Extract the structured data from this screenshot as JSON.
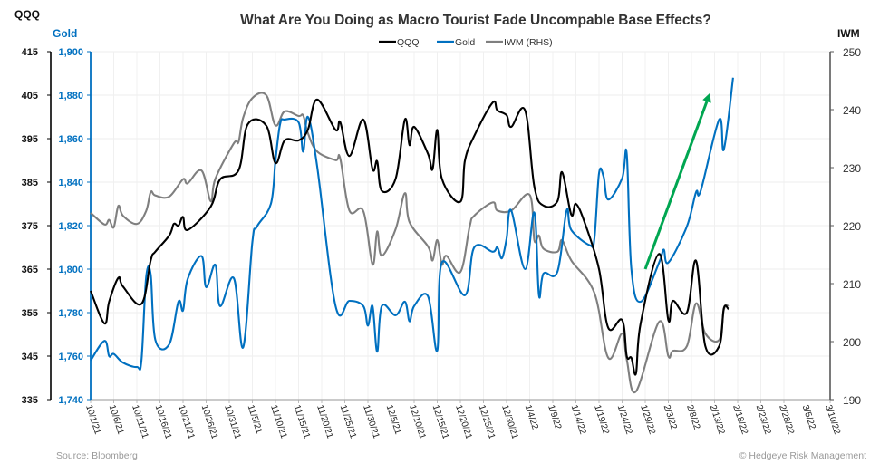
{
  "chart_data": {
    "type": "line",
    "title": "What Are You Doing as Macro Tourist Fade Uncompable Base Effects?",
    "source": "Source: Bloomberg",
    "copyright": "© Hedgeye Risk Management",
    "axes": {
      "left_outer": {
        "label": "QQQ",
        "range": [
          335,
          415
        ],
        "ticks": [
          "335",
          "345",
          "355",
          "365",
          "375",
          "385",
          "395",
          "405",
          "415"
        ],
        "color": "#000000"
      },
      "left_inner": {
        "label": "Gold",
        "range": [
          1740,
          1900
        ],
        "ticks": [
          "1,740",
          "1,760",
          "1,780",
          "1,800",
          "1,820",
          "1,840",
          "1,860",
          "1,880",
          "1,900"
        ],
        "color": "#0070c0"
      },
      "right": {
        "label": "IWM",
        "range": [
          190,
          250
        ],
        "ticks": [
          "190",
          "200",
          "210",
          "220",
          "230",
          "240",
          "250"
        ],
        "color": "#595959"
      },
      "x": {
        "range": [
          "2021-10-01",
          "2022-03-10"
        ],
        "ticks": [
          "10/1/21",
          "10/6/21",
          "10/11/21",
          "10/16/21",
          "10/21/21",
          "10/26/21",
          "10/31/21",
          "11/5/21",
          "11/10/21",
          "11/15/21",
          "11/20/21",
          "11/25/21",
          "11/30/21",
          "12/5/21",
          "12/10/21",
          "12/15/21",
          "12/20/21",
          "12/25/21",
          "12/30/21",
          "1/4/22",
          "1/9/22",
          "1/14/22",
          "1/19/22",
          "1/24/22",
          "1/29/22",
          "2/3/22",
          "2/8/22",
          "2/13/22",
          "2/18/22",
          "2/23/22",
          "2/28/22",
          "3/5/22",
          "3/10/22"
        ]
      }
    },
    "grid": true,
    "legend_position": "top-center",
    "series": [
      {
        "name": "QQQ",
        "axis": "left_outer",
        "color": "#000000",
        "points": [
          [
            "2021-10-01",
            360
          ],
          [
            "2021-10-04",
            352.5
          ],
          [
            "2021-10-05",
            357.5
          ],
          [
            "2021-10-07",
            363
          ],
          [
            "2021-10-08",
            361
          ],
          [
            "2021-10-12",
            357
          ],
          [
            "2021-10-14",
            367
          ],
          [
            "2021-10-15",
            369
          ],
          [
            "2021-10-18",
            372.7
          ],
          [
            "2021-10-19",
            375.4
          ],
          [
            "2021-10-20",
            375
          ],
          [
            "2021-10-21",
            377
          ],
          [
            "2021-10-22",
            374
          ],
          [
            "2021-10-27",
            379.4
          ],
          [
            "2021-10-29",
            385.6
          ],
          [
            "2021-11-02",
            387.7
          ],
          [
            "2021-11-04",
            398.3
          ],
          [
            "2021-11-08",
            398
          ],
          [
            "2021-11-10",
            389.4
          ],
          [
            "2021-11-12",
            394.6
          ],
          [
            "2021-11-15",
            394.6
          ],
          [
            "2021-11-17",
            397
          ],
          [
            "2021-11-19",
            404
          ],
          [
            "2021-11-23",
            397
          ],
          [
            "2021-11-24",
            398.8
          ],
          [
            "2021-11-26",
            391
          ],
          [
            "2021-11-29",
            399.4
          ],
          [
            "2021-12-01",
            388
          ],
          [
            "2021-12-02",
            389.8
          ],
          [
            "2021-12-03",
            383
          ],
          [
            "2021-12-06",
            385.8
          ],
          [
            "2021-12-08",
            399.4
          ],
          [
            "2021-12-09",
            393.5
          ],
          [
            "2021-12-10",
            397.7
          ],
          [
            "2021-12-13",
            391.5
          ],
          [
            "2021-12-14",
            388
          ],
          [
            "2021-12-15",
            397
          ],
          [
            "2021-12-16",
            385.8
          ],
          [
            "2021-12-20",
            380.5
          ],
          [
            "2021-12-21",
            390
          ],
          [
            "2021-12-23",
            395.6
          ],
          [
            "2021-12-27",
            403.3
          ],
          [
            "2021-12-28",
            401.5
          ],
          [
            "2021-12-30",
            400.4
          ],
          [
            "2021-12-31",
            397.7
          ],
          [
            "2022-01-03",
            401.5
          ],
          [
            "2022-01-05",
            384
          ],
          [
            "2022-01-07",
            379.6
          ],
          [
            "2022-01-10",
            380.6
          ],
          [
            "2022-01-11",
            387.3
          ],
          [
            "2022-01-13",
            377.5
          ],
          [
            "2022-01-14",
            380
          ],
          [
            "2022-01-16",
            375.4
          ],
          [
            "2022-01-19",
            365
          ],
          [
            "2022-01-21",
            351.5
          ],
          [
            "2022-01-24",
            353.3
          ],
          [
            "2022-01-25",
            345
          ],
          [
            "2022-01-26",
            344.6
          ],
          [
            "2022-01-27",
            341
          ],
          [
            "2022-01-28",
            352.5
          ],
          [
            "2022-02-01",
            368.5
          ],
          [
            "2022-02-03",
            353.3
          ],
          [
            "2022-02-04",
            357.7
          ],
          [
            "2022-02-07",
            355
          ],
          [
            "2022-02-09",
            366.9
          ],
          [
            "2022-02-11",
            347.3
          ],
          [
            "2022-02-14",
            347.3
          ],
          [
            "2022-02-15",
            356
          ],
          [
            "2022-02-16",
            355.8
          ]
        ]
      },
      {
        "name": "Gold",
        "axis": "left_inner",
        "color": "#0070c0",
        "points": [
          [
            "2021-10-01",
            1758
          ],
          [
            "2021-10-04",
            1767
          ],
          [
            "2021-10-05",
            1760
          ],
          [
            "2021-10-06",
            1761
          ],
          [
            "2021-10-08",
            1757
          ],
          [
            "2021-10-11",
            1755
          ],
          [
            "2021-10-12",
            1758
          ],
          [
            "2021-10-13",
            1796
          ],
          [
            "2021-10-14",
            1797.5
          ],
          [
            "2021-10-15",
            1767.5
          ],
          [
            "2021-10-18",
            1765.4
          ],
          [
            "2021-10-20",
            1785
          ],
          [
            "2021-10-21",
            1781
          ],
          [
            "2021-10-22",
            1795.4
          ],
          [
            "2021-10-25",
            1806
          ],
          [
            "2021-10-26",
            1791.7
          ],
          [
            "2021-10-28",
            1802
          ],
          [
            "2021-10-29",
            1783
          ],
          [
            "2021-11-01",
            1795.8
          ],
          [
            "2021-11-03",
            1764
          ],
          [
            "2021-11-05",
            1812.5
          ],
          [
            "2021-11-06",
            1819.6
          ],
          [
            "2021-11-09",
            1830
          ],
          [
            "2021-11-10",
            1850
          ],
          [
            "2021-11-11",
            1866.7
          ],
          [
            "2021-11-12",
            1868.8
          ],
          [
            "2021-11-15",
            1867.5
          ],
          [
            "2021-11-16",
            1854
          ],
          [
            "2021-11-17",
            1870
          ],
          [
            "2021-11-19",
            1847.5
          ],
          [
            "2021-11-23",
            1783
          ],
          [
            "2021-11-26",
            1785.4
          ],
          [
            "2021-11-29",
            1783
          ],
          [
            "2021-11-30",
            1774
          ],
          [
            "2021-12-01",
            1783
          ],
          [
            "2021-12-02",
            1762
          ],
          [
            "2021-12-03",
            1783
          ],
          [
            "2021-12-06",
            1778.8
          ],
          [
            "2021-12-08",
            1785
          ],
          [
            "2021-12-09",
            1776
          ],
          [
            "2021-12-10",
            1783
          ],
          [
            "2021-12-13",
            1787.5
          ],
          [
            "2021-12-15",
            1762.5
          ],
          [
            "2021-12-16",
            1803
          ],
          [
            "2021-12-21",
            1788
          ],
          [
            "2021-12-23",
            1810
          ],
          [
            "2021-12-27",
            1808
          ],
          [
            "2021-12-28",
            1810
          ],
          [
            "2021-12-29",
            1805
          ],
          [
            "2021-12-30",
            1814
          ],
          [
            "2021-12-31",
            1827
          ],
          [
            "2022-01-03",
            1800
          ],
          [
            "2022-01-05",
            1826
          ],
          [
            "2022-01-06",
            1788
          ],
          [
            "2022-01-07",
            1798
          ],
          [
            "2022-01-10",
            1798.8
          ],
          [
            "2022-01-12",
            1827
          ],
          [
            "2022-01-13",
            1818
          ],
          [
            "2022-01-17",
            1811
          ],
          [
            "2022-01-18",
            1814
          ],
          [
            "2022-01-19",
            1844
          ],
          [
            "2022-01-20",
            1842.5
          ],
          [
            "2022-01-21",
            1832
          ],
          [
            "2022-01-24",
            1841.7
          ],
          [
            "2022-01-25",
            1853
          ],
          [
            "2022-01-26",
            1800
          ],
          [
            "2022-01-28",
            1785
          ],
          [
            "2022-02-01",
            1803
          ],
          [
            "2022-02-02",
            1809
          ],
          [
            "2022-02-03",
            1803
          ],
          [
            "2022-02-07",
            1819.6
          ],
          [
            "2022-02-09",
            1835.4
          ],
          [
            "2022-02-10",
            1836
          ],
          [
            "2022-02-14",
            1868.8
          ],
          [
            "2022-02-15",
            1855
          ],
          [
            "2022-02-17",
            1888
          ]
        ]
      },
      {
        "name": "IWM (RHS)",
        "axis": "right",
        "color": "#7f7f7f",
        "points": [
          [
            "2021-10-01",
            222.2
          ],
          [
            "2021-10-04",
            220.2
          ],
          [
            "2021-10-05",
            221
          ],
          [
            "2021-10-06",
            219.7
          ],
          [
            "2021-10-07",
            223.4
          ],
          [
            "2021-10-08",
            221.7
          ],
          [
            "2021-10-11",
            220.3
          ],
          [
            "2021-10-13",
            222.5
          ],
          [
            "2021-10-14",
            225.8
          ],
          [
            "2021-10-15",
            225.2
          ],
          [
            "2021-10-18",
            225
          ],
          [
            "2021-10-21",
            228
          ],
          [
            "2021-10-22",
            227.3
          ],
          [
            "2021-10-25",
            229.5
          ],
          [
            "2021-10-27",
            224.2
          ],
          [
            "2021-10-28",
            228.1
          ],
          [
            "2021-11-01",
            234.2
          ],
          [
            "2021-11-02",
            234.4
          ],
          [
            "2021-11-03",
            238.6
          ],
          [
            "2021-11-05",
            242
          ],
          [
            "2021-11-08",
            242.5
          ],
          [
            "2021-11-10",
            237.3
          ],
          [
            "2021-11-12",
            239.7
          ],
          [
            "2021-11-15",
            238.9
          ],
          [
            "2021-11-16",
            239
          ],
          [
            "2021-11-17",
            236
          ],
          [
            "2021-11-19",
            232.8
          ],
          [
            "2021-11-23",
            231.3
          ],
          [
            "2021-11-24",
            231.6
          ],
          [
            "2021-11-26",
            222.6
          ],
          [
            "2021-11-29",
            222.5
          ],
          [
            "2021-12-01",
            213.3
          ],
          [
            "2021-12-02",
            219
          ],
          [
            "2021-12-03",
            214.8
          ],
          [
            "2021-12-06",
            219.4
          ],
          [
            "2021-12-08",
            225.6
          ],
          [
            "2021-12-09",
            220.6
          ],
          [
            "2021-12-13",
            216.4
          ],
          [
            "2021-12-14",
            214
          ],
          [
            "2021-12-15",
            217.5
          ],
          [
            "2021-12-16",
            213.3
          ],
          [
            "2021-12-17",
            214.8
          ],
          [
            "2021-12-20",
            212
          ],
          [
            "2021-12-22",
            219.8
          ],
          [
            "2021-12-23",
            221.7
          ],
          [
            "2021-12-27",
            224
          ],
          [
            "2021-12-28",
            222.6
          ],
          [
            "2021-12-31",
            222.6
          ],
          [
            "2022-01-04",
            225.3
          ],
          [
            "2022-01-05",
            217.5
          ],
          [
            "2022-01-06",
            218.3
          ],
          [
            "2022-01-07",
            216
          ],
          [
            "2022-01-10",
            215.5
          ],
          [
            "2022-01-11",
            217.5
          ],
          [
            "2022-01-13",
            214
          ],
          [
            "2022-01-18",
            208.4
          ],
          [
            "2022-01-21",
            197.2
          ],
          [
            "2022-01-24",
            201.4
          ],
          [
            "2022-01-25",
            196.9
          ],
          [
            "2022-01-27",
            191.4
          ],
          [
            "2022-02-01",
            203.4
          ],
          [
            "2022-02-03",
            197.5
          ],
          [
            "2022-02-04",
            198.4
          ],
          [
            "2022-02-07",
            199.2
          ],
          [
            "2022-02-09",
            206.6
          ],
          [
            "2022-02-11",
            201.4
          ],
          [
            "2022-02-14",
            200.3
          ],
          [
            "2022-02-15",
            205.5
          ],
          [
            "2022-02-16",
            206.3
          ]
        ]
      }
    ],
    "annotation_arrow": {
      "axis": "left_inner",
      "from": [
        "2022-01-29",
        1800
      ],
      "to": [
        "2022-02-12",
        1881
      ],
      "color": "#00a651"
    }
  }
}
